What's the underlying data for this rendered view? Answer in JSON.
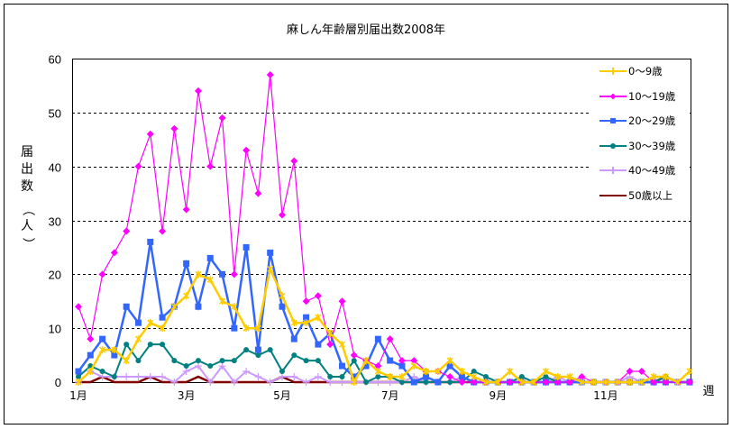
{
  "chart_data": {
    "type": "line",
    "title": "麻しん年齢層別届出数2008年",
    "xlabel": "週",
    "ylabel": "届出数（人）",
    "ylim": [
      0,
      60
    ],
    "yticks": [
      0,
      10,
      20,
      30,
      40,
      50,
      60
    ],
    "xtick_labels": [
      "1月",
      "3月",
      "5月",
      "7月",
      "9月",
      "11月"
    ],
    "xtick_week_index": [
      0,
      9,
      17,
      26,
      35,
      44
    ],
    "grid": "horizontal dashed",
    "legend_position": "right-inside",
    "x": [
      1,
      2,
      3,
      4,
      5,
      6,
      7,
      8,
      9,
      10,
      11,
      12,
      13,
      14,
      15,
      16,
      17,
      18,
      19,
      20,
      21,
      22,
      23,
      24,
      25,
      26,
      27,
      28,
      29,
      30,
      31,
      32,
      33,
      34,
      35,
      36,
      37,
      38,
      39,
      40,
      41,
      42,
      43,
      44,
      45,
      46,
      47,
      48,
      49,
      50,
      51,
      52
    ],
    "series": [
      {
        "name": "0～9歳",
        "color": "#FFCC00",
        "marker": "star",
        "values": [
          0,
          2,
          6,
          6,
          4,
          8,
          11,
          10,
          14,
          16,
          20,
          19,
          15,
          14,
          10,
          10,
          21,
          16,
          11,
          11,
          12,
          9,
          7,
          0,
          4,
          2,
          1,
          1,
          3,
          2,
          2,
          4,
          2,
          1,
          0,
          0,
          2,
          0,
          0,
          2,
          1,
          1,
          0,
          0,
          0,
          0,
          0,
          0,
          1,
          1,
          0,
          2
        ]
      },
      {
        "name": "10～19歳",
        "color": "#FF00FF",
        "marker": "diamond",
        "values": [
          14,
          8,
          20,
          24,
          28,
          40,
          46,
          28,
          47,
          32,
          54,
          40,
          49,
          20,
          43,
          35,
          57,
          31,
          41,
          15,
          16,
          7,
          15,
          5,
          4,
          3,
          8,
          4,
          4,
          2,
          2,
          1,
          0,
          0,
          0,
          0,
          0,
          0,
          0,
          0,
          0,
          0,
          1,
          0,
          0,
          0,
          2,
          2,
          0,
          0,
          0,
          0
        ]
      },
      {
        "name": "20～29歳",
        "color": "#3366FF",
        "marker": "square",
        "values": [
          2,
          5,
          8,
          5,
          14,
          11,
          26,
          12,
          14,
          22,
          14,
          23,
          20,
          10,
          25,
          6,
          24,
          14,
          8,
          12,
          7,
          9,
          3,
          1,
          3,
          8,
          4,
          3,
          0,
          1,
          0,
          3,
          1,
          0,
          0,
          0,
          0,
          0,
          0,
          0,
          0,
          0,
          0,
          0,
          0,
          0,
          0,
          0,
          0,
          0,
          0,
          0
        ]
      },
      {
        "name": "30～39歳",
        "color": "#008080",
        "marker": "circle",
        "values": [
          1,
          3,
          2,
          1,
          7,
          4,
          7,
          7,
          4,
          3,
          4,
          3,
          4,
          4,
          6,
          5,
          6,
          2,
          5,
          4,
          4,
          1,
          1,
          4,
          0,
          1,
          1,
          0,
          0,
          0,
          0,
          0,
          0,
          2,
          1,
          0,
          0,
          1,
          0,
          1,
          0,
          0,
          0,
          0,
          0,
          0,
          0,
          0,
          0,
          1,
          0,
          0
        ]
      },
      {
        "name": "40～49歳",
        "color": "#CC99FF",
        "marker": "plus",
        "values": [
          0,
          2,
          1,
          1,
          1,
          1,
          1,
          1,
          0,
          2,
          3,
          0,
          3,
          0,
          2,
          1,
          0,
          1,
          1,
          0,
          1,
          0,
          0,
          0,
          0,
          0,
          0,
          0,
          1,
          0,
          0,
          0,
          1,
          0,
          0,
          0,
          0,
          0,
          0,
          0,
          1,
          0,
          0,
          0,
          0,
          0,
          1,
          0,
          0,
          0,
          0,
          0
        ]
      },
      {
        "name": "50歳以上",
        "color": "#800000",
        "marker": "none",
        "values": [
          0,
          0,
          1,
          0,
          0,
          0,
          1,
          0,
          0,
          0,
          1,
          0,
          0,
          0,
          0,
          0,
          0,
          1,
          0,
          0,
          0,
          0,
          0,
          0,
          0,
          0,
          0,
          0,
          0,
          0,
          0,
          0,
          0,
          0,
          0,
          0,
          0,
          0,
          0,
          0,
          0,
          0,
          0,
          0,
          0,
          0,
          0,
          0,
          0,
          1,
          0,
          0
        ]
      }
    ]
  },
  "labels": {
    "title": "麻しん年齢層別届出数2008年",
    "ylabel_chars": [
      "届",
      "出",
      "数",
      "（",
      "人",
      "）"
    ],
    "xlabel": "週"
  }
}
